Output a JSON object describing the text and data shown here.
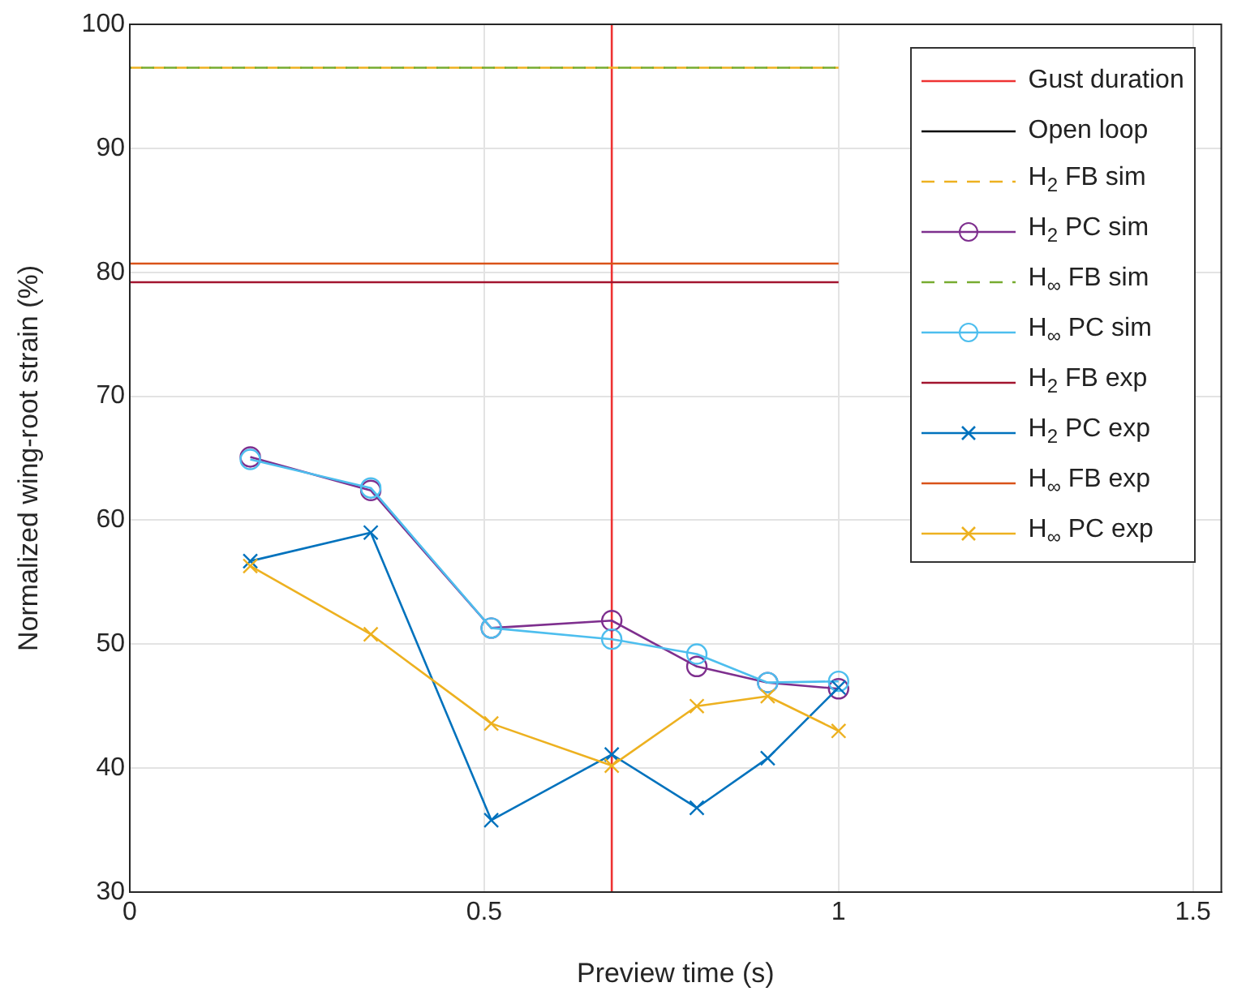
{
  "chart_data": {
    "type": "line",
    "xlabel": "Preview time (s)",
    "ylabel": "Normalized wing-root strain (%)",
    "xlim": [
      0,
      1.54
    ],
    "xticks": [
      0,
      0.5,
      1,
      1.5
    ],
    "ylim": [
      30,
      100
    ],
    "yticks": [
      30,
      40,
      50,
      60,
      70,
      80,
      90,
      100
    ],
    "grid": true,
    "legend": "top right",
    "series": [
      {
        "name": "Gust duration",
        "color": "#ee3333",
        "x": [
          0.68,
          0.68
        ],
        "values": [
          30,
          100
        ],
        "marker": "none",
        "line_style": "solid"
      },
      {
        "name": "Open loop",
        "color": "#000000",
        "marker": "none",
        "line_style": "solid"
      },
      {
        "name": "H$_{2}$ FB sim",
        "color": "#edb120",
        "x": [
          0,
          1
        ],
        "values": [
          96.5,
          96.5
        ],
        "marker": "none",
        "line_style": "dashed"
      },
      {
        "name": "H$_{2}$ PC sim",
        "color": "#7e2f8e",
        "x": [
          0.17,
          0.34,
          0.51,
          0.68,
          0.8,
          0.9,
          1.0
        ],
        "values": [
          65.1,
          62.4,
          51.3,
          51.9,
          48.2,
          46.9,
          46.4
        ],
        "marker": "circle",
        "line_style": "solid"
      },
      {
        "name": "H$_{∞}$ FB sim",
        "color": "#77ac30",
        "x": [
          0,
          1
        ],
        "values": [
          96.5,
          96.5
        ],
        "marker": "none",
        "line_style": "dashed"
      },
      {
        "name": "H$_{∞}$ PC sim",
        "color": "#4dbeee",
        "x": [
          0.17,
          0.34,
          0.51,
          0.68,
          0.8,
          0.9,
          1.0
        ],
        "values": [
          64.9,
          62.6,
          51.3,
          50.4,
          49.2,
          46.9,
          47.0
        ],
        "marker": "circle",
        "line_style": "solid"
      },
      {
        "name": "H$_{2}$ FB exp",
        "color": "#a2142f",
        "x": [
          0,
          1
        ],
        "values": [
          79.2,
          79.2
        ],
        "marker": "none",
        "line_style": "solid"
      },
      {
        "name": "H$_{2}$ PC exp",
        "color": "#0072bd",
        "x": [
          0.17,
          0.34,
          0.51,
          0.68,
          0.8,
          0.9,
          1.0
        ],
        "values": [
          56.7,
          59.0,
          35.8,
          41.1,
          36.8,
          40.8,
          46.5
        ],
        "marker": "cross",
        "line_style": "solid"
      },
      {
        "name": "H$_{∞}$ FB exp",
        "color": "#d95319",
        "x": [
          0,
          1
        ],
        "values": [
          80.7,
          80.7
        ],
        "marker": "none",
        "line_style": "solid"
      },
      {
        "name": "H$_{∞}$ PC exp",
        "color": "#edb120",
        "x": [
          0.17,
          0.34,
          0.51,
          0.68,
          0.8,
          0.9,
          1.0
        ],
        "values": [
          56.3,
          50.8,
          43.6,
          40.2,
          45.0,
          45.8,
          43.0
        ],
        "marker": "cross",
        "line_style": "solid"
      }
    ]
  }
}
